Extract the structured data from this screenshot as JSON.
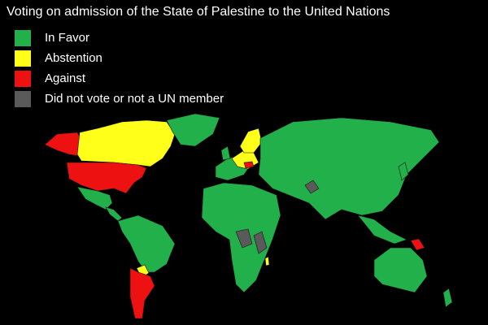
{
  "title": "Voting on admission of the State of Palestine to the United Nations",
  "legend": [
    {
      "label": "In Favor",
      "color": "#22b04a"
    },
    {
      "label": "Abstention",
      "color": "#ffff1a"
    },
    {
      "label": "Against",
      "color": "#ee1111"
    },
    {
      "label": "Did not vote or not a UN member",
      "color": "#5a5a5a"
    }
  ]
}
